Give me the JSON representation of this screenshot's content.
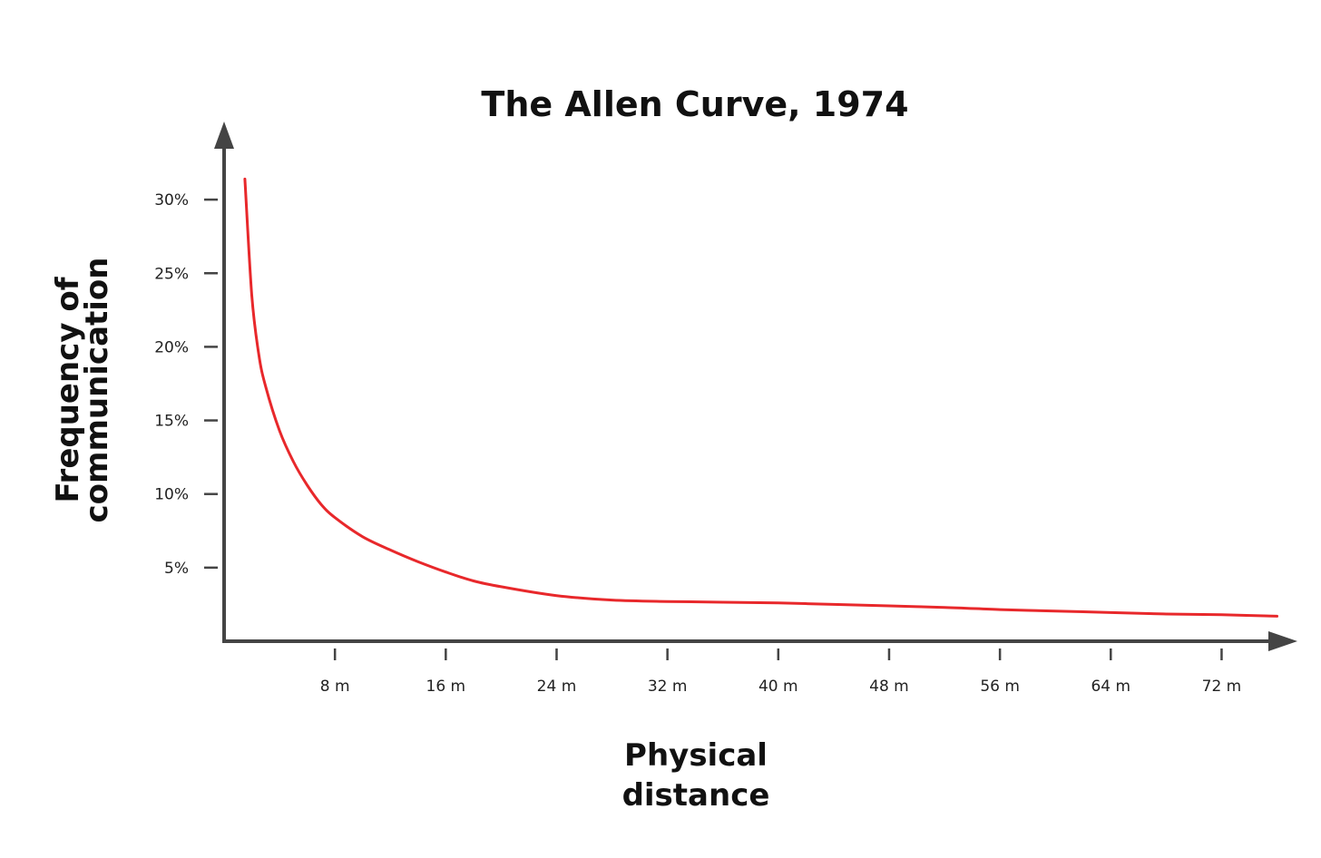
{
  "chart_data": {
    "type": "line",
    "title": "The Allen Curve, 1974",
    "xlabel": [
      "Physical",
      "distance"
    ],
    "ylabel": [
      "Frequency of",
      "communication"
    ],
    "x_ticks": [
      {
        "value": 8,
        "label": "8 m"
      },
      {
        "value": 16,
        "label": "16 m"
      },
      {
        "value": 24,
        "label": "24 m"
      },
      {
        "value": 32,
        "label": "32 m"
      },
      {
        "value": 40,
        "label": "40 m"
      },
      {
        "value": 48,
        "label": "48 m"
      },
      {
        "value": 56,
        "label": "56 m"
      },
      {
        "value": 64,
        "label": "64 m"
      },
      {
        "value": 72,
        "label": "72 m"
      }
    ],
    "y_ticks": [
      {
        "value": 5,
        "label": "5%"
      },
      {
        "value": 10,
        "label": "10%"
      },
      {
        "value": 15,
        "label": "15%"
      },
      {
        "value": 20,
        "label": "20%"
      },
      {
        "value": 25,
        "label": "25%"
      },
      {
        "value": 30,
        "label": "30%"
      }
    ],
    "xlim": [
      0,
      76
    ],
    "ylim": [
      0,
      34
    ],
    "grid": false,
    "series": [
      {
        "color": "#e8282b",
        "x": [
          1.5,
          2,
          2.5,
          3,
          4,
          5,
          6,
          7,
          8,
          10,
          12,
          14,
          16,
          18,
          20,
          24,
          28,
          32,
          36,
          40,
          44,
          48,
          52,
          56,
          60,
          64,
          68,
          72,
          76
        ],
        "y": [
          31.4,
          23.5,
          19.5,
          17.3,
          14.3,
          12.2,
          10.6,
          9.3,
          8.4,
          7.1,
          6.2,
          5.4,
          4.7,
          4.1,
          3.7,
          3.1,
          2.8,
          2.7,
          2.65,
          2.6,
          2.5,
          2.4,
          2.3,
          2.15,
          2.05,
          1.95,
          1.85,
          1.8,
          1.7
        ]
      }
    ]
  }
}
